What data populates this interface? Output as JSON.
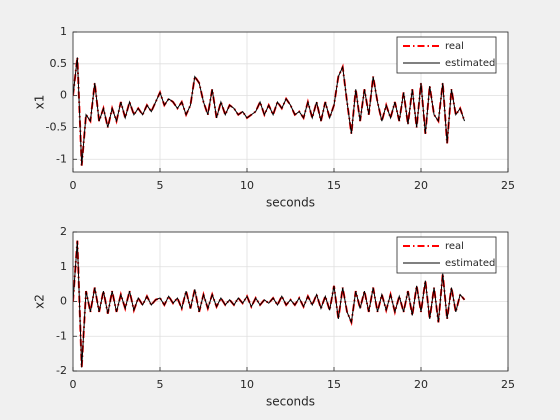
{
  "chart_data": [
    {
      "type": "line",
      "xlabel": "seconds",
      "ylabel": "x1",
      "x": [
        0,
        0.25,
        0.5,
        0.75,
        1,
        1.25,
        1.5,
        1.75,
        2,
        2.25,
        2.5,
        2.75,
        3,
        3.25,
        3.5,
        3.75,
        4,
        4.25,
        4.5,
        4.75,
        5,
        5.25,
        5.5,
        5.75,
        6,
        6.25,
        6.5,
        6.75,
        7,
        7.25,
        7.5,
        7.75,
        8,
        8.25,
        8.5,
        8.75,
        9,
        9.25,
        9.5,
        9.75,
        10,
        10.25,
        10.5,
        10.75,
        11,
        11.25,
        11.5,
        11.75,
        12,
        12.25,
        12.5,
        12.75,
        13,
        13.25,
        13.5,
        13.75,
        14,
        14.25,
        14.5,
        14.75,
        15,
        15.25,
        15.5,
        15.75,
        16,
        16.25,
        16.5,
        16.75,
        17,
        17.25,
        17.5,
        17.75,
        18,
        18.25,
        18.5,
        18.75,
        19,
        19.25,
        19.5,
        19.75,
        20,
        20.25,
        20.5,
        20.75,
        21,
        21.25,
        21.5,
        21.75,
        22,
        22.25,
        22.5
      ],
      "series": [
        {
          "name": "real",
          "color": "#ff0000",
          "style": "dashdot",
          "values": [
            0,
            0.6,
            -1.1,
            -0.3,
            -0.4,
            0.2,
            -0.4,
            -0.2,
            -0.5,
            -0.2,
            -0.4,
            -0.1,
            -0.35,
            -0.1,
            -0.3,
            -0.2,
            -0.3,
            -0.15,
            -0.25,
            -0.1,
            0.05,
            -0.15,
            -0.05,
            -0.1,
            -0.2,
            -0.1,
            -0.3,
            -0.15,
            0.3,
            0.2,
            -0.1,
            -0.3,
            0.1,
            -0.35,
            -0.1,
            -0.3,
            -0.15,
            -0.2,
            -0.3,
            -0.25,
            -0.35,
            -0.3,
            -0.25,
            -0.1,
            -0.3,
            -0.15,
            -0.3,
            -0.1,
            -0.2,
            -0.05,
            -0.15,
            -0.3,
            -0.25,
            -0.35,
            -0.1,
            -0.35,
            -0.1,
            -0.4,
            -0.1,
            -0.35,
            -0.15,
            0.3,
            0.45,
            -0.1,
            -0.6,
            0.1,
            -0.4,
            0.1,
            -0.3,
            0.3,
            -0.1,
            -0.4,
            -0.15,
            -0.35,
            -0.1,
            -0.4,
            0.05,
            -0.45,
            0.1,
            -0.5,
            0.2,
            -0.6,
            0.15,
            -0.3,
            -0.4,
            0.2,
            -0.75,
            0.1,
            -0.3,
            -0.2,
            -0.4
          ]
        },
        {
          "name": "estimated",
          "color": "#000000",
          "style": "solid",
          "values": [
            0,
            0.6,
            -1.1,
            -0.3,
            -0.4,
            0.2,
            -0.4,
            -0.2,
            -0.5,
            -0.2,
            -0.4,
            -0.1,
            -0.35,
            -0.1,
            -0.3,
            -0.2,
            -0.3,
            -0.15,
            -0.25,
            -0.1,
            0.05,
            -0.15,
            -0.05,
            -0.1,
            -0.2,
            -0.1,
            -0.3,
            -0.15,
            0.3,
            0.2,
            -0.1,
            -0.3,
            0.1,
            -0.35,
            -0.1,
            -0.3,
            -0.15,
            -0.2,
            -0.3,
            -0.25,
            -0.35,
            -0.3,
            -0.25,
            -0.1,
            -0.3,
            -0.15,
            -0.3,
            -0.1,
            -0.2,
            -0.05,
            -0.15,
            -0.3,
            -0.25,
            -0.35,
            -0.1,
            -0.35,
            -0.1,
            -0.4,
            -0.1,
            -0.35,
            -0.15,
            0.3,
            0.45,
            -0.1,
            -0.6,
            0.1,
            -0.4,
            0.1,
            -0.3,
            0.3,
            -0.1,
            -0.4,
            -0.15,
            -0.35,
            -0.1,
            -0.4,
            0.05,
            -0.45,
            0.1,
            -0.5,
            0.2,
            -0.6,
            0.15,
            -0.3,
            -0.4,
            0.2,
            -0.75,
            0.1,
            -0.3,
            -0.2,
            -0.4
          ]
        }
      ],
      "xlim": [
        0,
        25
      ],
      "xticks": [
        0,
        5,
        10,
        15,
        20,
        25
      ],
      "ylim": [
        -1.2,
        1
      ],
      "yticks": [
        -1,
        -0.5,
        0,
        0.5,
        1
      ],
      "grid": true,
      "legend": "northeast"
    },
    {
      "type": "line",
      "xlabel": "seconds",
      "ylabel": "x2",
      "x": [
        0,
        0.25,
        0.5,
        0.75,
        1,
        1.25,
        1.5,
        1.75,
        2,
        2.25,
        2.5,
        2.75,
        3,
        3.25,
        3.5,
        3.75,
        4,
        4.25,
        4.5,
        4.75,
        5,
        5.25,
        5.5,
        5.75,
        6,
        6.25,
        6.5,
        6.75,
        7,
        7.25,
        7.5,
        7.75,
        8,
        8.25,
        8.5,
        8.75,
        9,
        9.25,
        9.5,
        9.75,
        10,
        10.25,
        10.5,
        10.75,
        11,
        11.25,
        11.5,
        11.75,
        12,
        12.25,
        12.5,
        12.75,
        13,
        13.25,
        13.5,
        13.75,
        14,
        14.25,
        14.5,
        14.75,
        15,
        15.25,
        15.5,
        15.75,
        16,
        16.25,
        16.5,
        16.75,
        17,
        17.25,
        17.5,
        17.75,
        18,
        18.25,
        18.5,
        18.75,
        19,
        19.25,
        19.5,
        19.75,
        20,
        20.25,
        20.5,
        20.75,
        21,
        21.25,
        21.5,
        21.75,
        22,
        22.25,
        22.5
      ],
      "series": [
        {
          "name": "real",
          "color": "#ff0000",
          "style": "dashdot",
          "values": [
            0,
            1.75,
            -1.9,
            0.3,
            -0.3,
            0.4,
            -0.3,
            0.3,
            -0.35,
            0.3,
            -0.3,
            0.2,
            -0.2,
            0.3,
            -0.25,
            0.1,
            -0.1,
            0.15,
            -0.1,
            0.05,
            0.1,
            -0.1,
            0.15,
            -0.05,
            0.1,
            -0.2,
            0.3,
            -0.2,
            0.35,
            -0.3,
            0.2,
            -0.2,
            0.2,
            -0.15,
            0.1,
            -0.1,
            0.05,
            -0.1,
            0.1,
            -0.05,
            0.15,
            -0.15,
            0.1,
            -0.1,
            0.05,
            -0.05,
            0.1,
            -0.1,
            0.15,
            -0.1,
            0.05,
            -0.1,
            0.1,
            -0.15,
            0.15,
            -0.1,
            0.2,
            -0.2,
            0.15,
            -0.25,
            0.45,
            -0.5,
            0.4,
            -0.3,
            -0.6,
            0.3,
            -0.2,
            0.3,
            -0.3,
            0.4,
            -0.3,
            0.2,
            -0.25,
            0.2,
            -0.3,
            0.15,
            -0.3,
            0.3,
            -0.4,
            0.45,
            -0.3,
            0.6,
            -0.5,
            0.4,
            -0.6,
            0.8,
            -0.5,
            0.4,
            -0.3,
            0.2,
            0.05
          ]
        },
        {
          "name": "estimated",
          "color": "#000000",
          "style": "solid",
          "values": [
            0,
            1.75,
            -1.9,
            0.3,
            -0.3,
            0.4,
            -0.3,
            0.3,
            -0.35,
            0.3,
            -0.3,
            0.2,
            -0.2,
            0.3,
            -0.25,
            0.1,
            -0.1,
            0.15,
            -0.1,
            0.05,
            0.1,
            -0.1,
            0.15,
            -0.05,
            0.1,
            -0.2,
            0.3,
            -0.2,
            0.35,
            -0.3,
            0.2,
            -0.2,
            0.2,
            -0.15,
            0.1,
            -0.1,
            0.05,
            -0.1,
            0.1,
            -0.05,
            0.15,
            -0.15,
            0.1,
            -0.1,
            0.05,
            -0.05,
            0.1,
            -0.1,
            0.15,
            -0.1,
            0.05,
            -0.1,
            0.1,
            -0.15,
            0.15,
            -0.1,
            0.2,
            -0.2,
            0.15,
            -0.25,
            0.45,
            -0.5,
            0.4,
            -0.3,
            -0.6,
            0.3,
            -0.2,
            0.3,
            -0.3,
            0.4,
            -0.3,
            0.2,
            -0.25,
            0.2,
            -0.3,
            0.15,
            -0.3,
            0.3,
            -0.4,
            0.45,
            -0.3,
            0.6,
            -0.5,
            0.4,
            -0.6,
            0.8,
            -0.5,
            0.4,
            -0.3,
            0.2,
            0.05
          ]
        }
      ],
      "xlim": [
        0,
        25
      ],
      "xticks": [
        0,
        5,
        10,
        15,
        20,
        25
      ],
      "ylim": [
        -2,
        2
      ],
      "yticks": [
        -2,
        -1,
        0,
        1,
        2
      ],
      "grid": true,
      "legend": "northeast"
    }
  ]
}
